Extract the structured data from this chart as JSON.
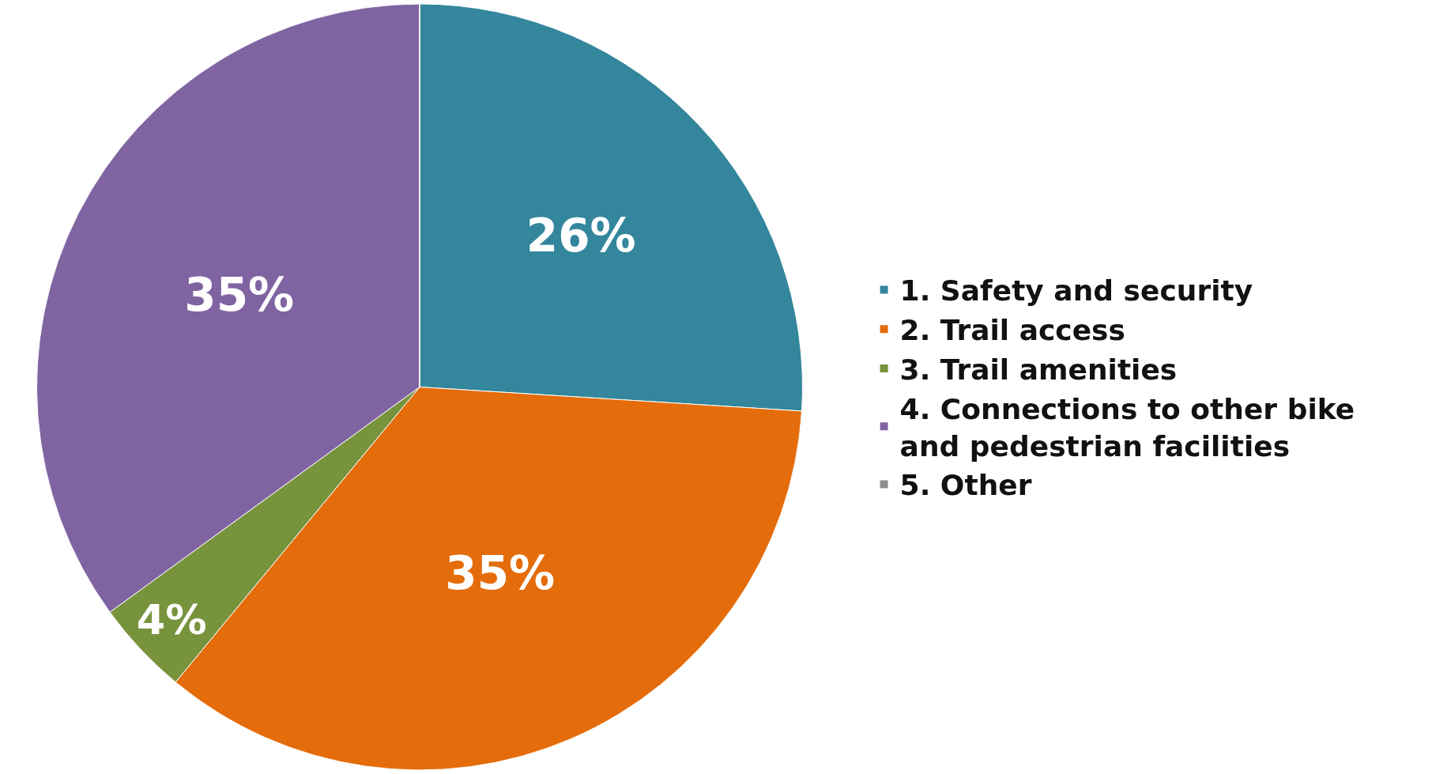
{
  "chart_data": {
    "type": "pie",
    "categories": [
      "1. Safety and security",
      "2. Trail access",
      "3. Trail amenities",
      "4. Connections to other bike and pedestrian facilities",
      "5. Other"
    ],
    "values": [
      26,
      35,
      4,
      35,
      0
    ],
    "value_labels": [
      "26%",
      "35%",
      "4%",
      "35%",
      null
    ],
    "colors": [
      "#33869c",
      "#e46c0a",
      "#77933c",
      "#8064a2",
      "#8c8c8c"
    ],
    "legend": "right"
  }
}
